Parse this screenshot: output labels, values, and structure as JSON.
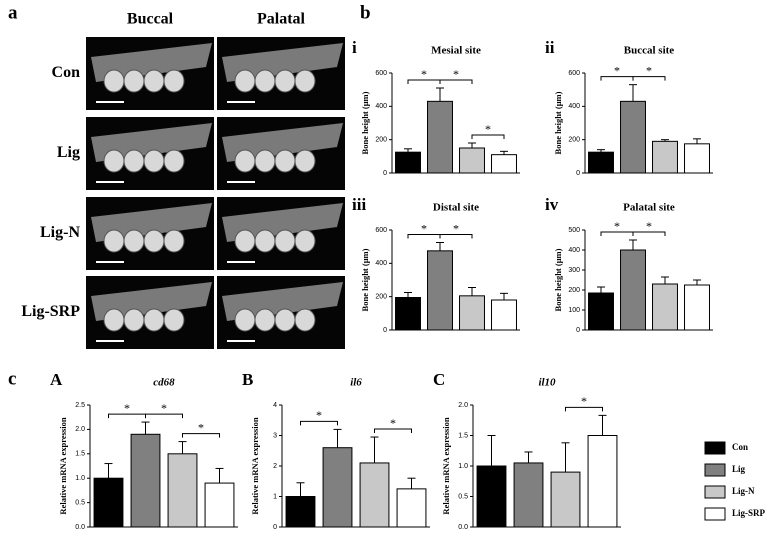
{
  "panels": [
    "a",
    "b",
    "c"
  ],
  "images": {
    "columns": [
      "Buccal",
      "Palatal"
    ],
    "rows": [
      "Con",
      "Lig",
      "Lig-N",
      "Lig-SRP"
    ]
  },
  "legend": {
    "labels": [
      "Con",
      "Lig",
      "Lig-N",
      "Lig-SRP"
    ],
    "colors": [
      "#000000",
      "#808080",
      "#c8c8c8",
      "#ffffff"
    ]
  },
  "chart_data": [
    {
      "type": "bar",
      "label": "i",
      "title": "Mesial site",
      "ylabel": "Bone height (μm)",
      "values": [
        125,
        430,
        150,
        110
      ],
      "errors": [
        20,
        80,
        30,
        20
      ],
      "ylim": [
        0,
        600
      ],
      "yticks": [
        0,
        200,
        400,
        600
      ],
      "significance": [
        {
          "pair": [
            0,
            1
          ],
          "label": "*"
        },
        {
          "pair": [
            1,
            2
          ],
          "label": "*"
        },
        {
          "pair": [
            2,
            3
          ],
          "label": "*"
        }
      ]
    },
    {
      "type": "bar",
      "label": "ii",
      "title": "Buccal site",
      "ylabel": "Bone height (μm)",
      "values": [
        125,
        430,
        190,
        175
      ],
      "errors": [
        15,
        100,
        10,
        30
      ],
      "ylim": [
        0,
        600
      ],
      "yticks": [
        0,
        200,
        400,
        600
      ],
      "significance": [
        {
          "pair": [
            0,
            1
          ],
          "label": "*"
        },
        {
          "pair": [
            1,
            2
          ],
          "label": "*"
        }
      ]
    },
    {
      "type": "bar",
      "label": "iii",
      "title": "Distal site",
      "ylabel": "Bone height (μm)",
      "values": [
        195,
        475,
        205,
        180
      ],
      "errors": [
        30,
        50,
        50,
        40
      ],
      "ylim": [
        0,
        600
      ],
      "yticks": [
        0,
        200,
        400,
        600
      ],
      "significance": [
        {
          "pair": [
            0,
            1
          ],
          "label": "*"
        },
        {
          "pair": [
            1,
            2
          ],
          "label": "*"
        }
      ]
    },
    {
      "type": "bar",
      "label": "iv",
      "title": "Palatal site",
      "ylabel": "Bone height (μm)",
      "values": [
        185,
        400,
        230,
        225
      ],
      "errors": [
        30,
        50,
        35,
        25
      ],
      "ylim": [
        0,
        500
      ],
      "yticks": [
        0,
        100,
        200,
        300,
        400,
        500
      ],
      "significance": [
        {
          "pair": [
            0,
            1
          ],
          "label": "*"
        },
        {
          "pair": [
            1,
            2
          ],
          "label": "*"
        }
      ]
    },
    {
      "type": "bar",
      "label": "A",
      "title": "cd68",
      "title_italic": true,
      "ylabel": "Relative mRNA expression",
      "values": [
        1.0,
        1.9,
        1.5,
        0.9
      ],
      "errors": [
        0.3,
        0.25,
        0.25,
        0.3
      ],
      "ylim": [
        0,
        2.5
      ],
      "yticks": [
        {
          "value": 0,
          "label": "0.0"
        },
        0.5,
        {
          "value": 1,
          "label": "1.0"
        },
        1.5,
        {
          "value": 2,
          "label": "2.0"
        },
        2.5
      ],
      "significance": [
        {
          "pair": [
            0,
            1
          ],
          "label": "*"
        },
        {
          "pair": [
            1,
            2
          ],
          "label": "*"
        },
        {
          "pair": [
            2,
            3
          ],
          "label": "*"
        }
      ]
    },
    {
      "type": "bar",
      "label": "B",
      "title": "il6",
      "title_italic": true,
      "ylabel": "Relative mRNA expression",
      "values": [
        1.0,
        2.6,
        2.1,
        1.25
      ],
      "errors": [
        0.45,
        0.6,
        0.85,
        0.35
      ],
      "ylim": [
        0,
        4
      ],
      "yticks": [
        0,
        1,
        2,
        3,
        4
      ],
      "significance": [
        {
          "pair": [
            0,
            1
          ],
          "label": "*"
        },
        {
          "pair": [
            2,
            3
          ],
          "label": "*"
        }
      ]
    },
    {
      "type": "bar",
      "label": "C",
      "title": "il10",
      "title_italic": true,
      "ylabel": "Relative mRNA expression",
      "values": [
        1.0,
        1.05,
        0.9,
        1.5
      ],
      "errors": [
        0.5,
        0.18,
        0.48,
        0.33
      ],
      "ylim": [
        0,
        2
      ],
      "yticks": [
        {
          "value": 0,
          "label": "0.0"
        },
        0.5,
        {
          "value": 1,
          "label": "1.0"
        },
        1.5,
        {
          "value": 2,
          "label": "2.0"
        }
      ],
      "significance": [
        {
          "pair": [
            2,
            3
          ],
          "label": "*"
        }
      ]
    }
  ]
}
